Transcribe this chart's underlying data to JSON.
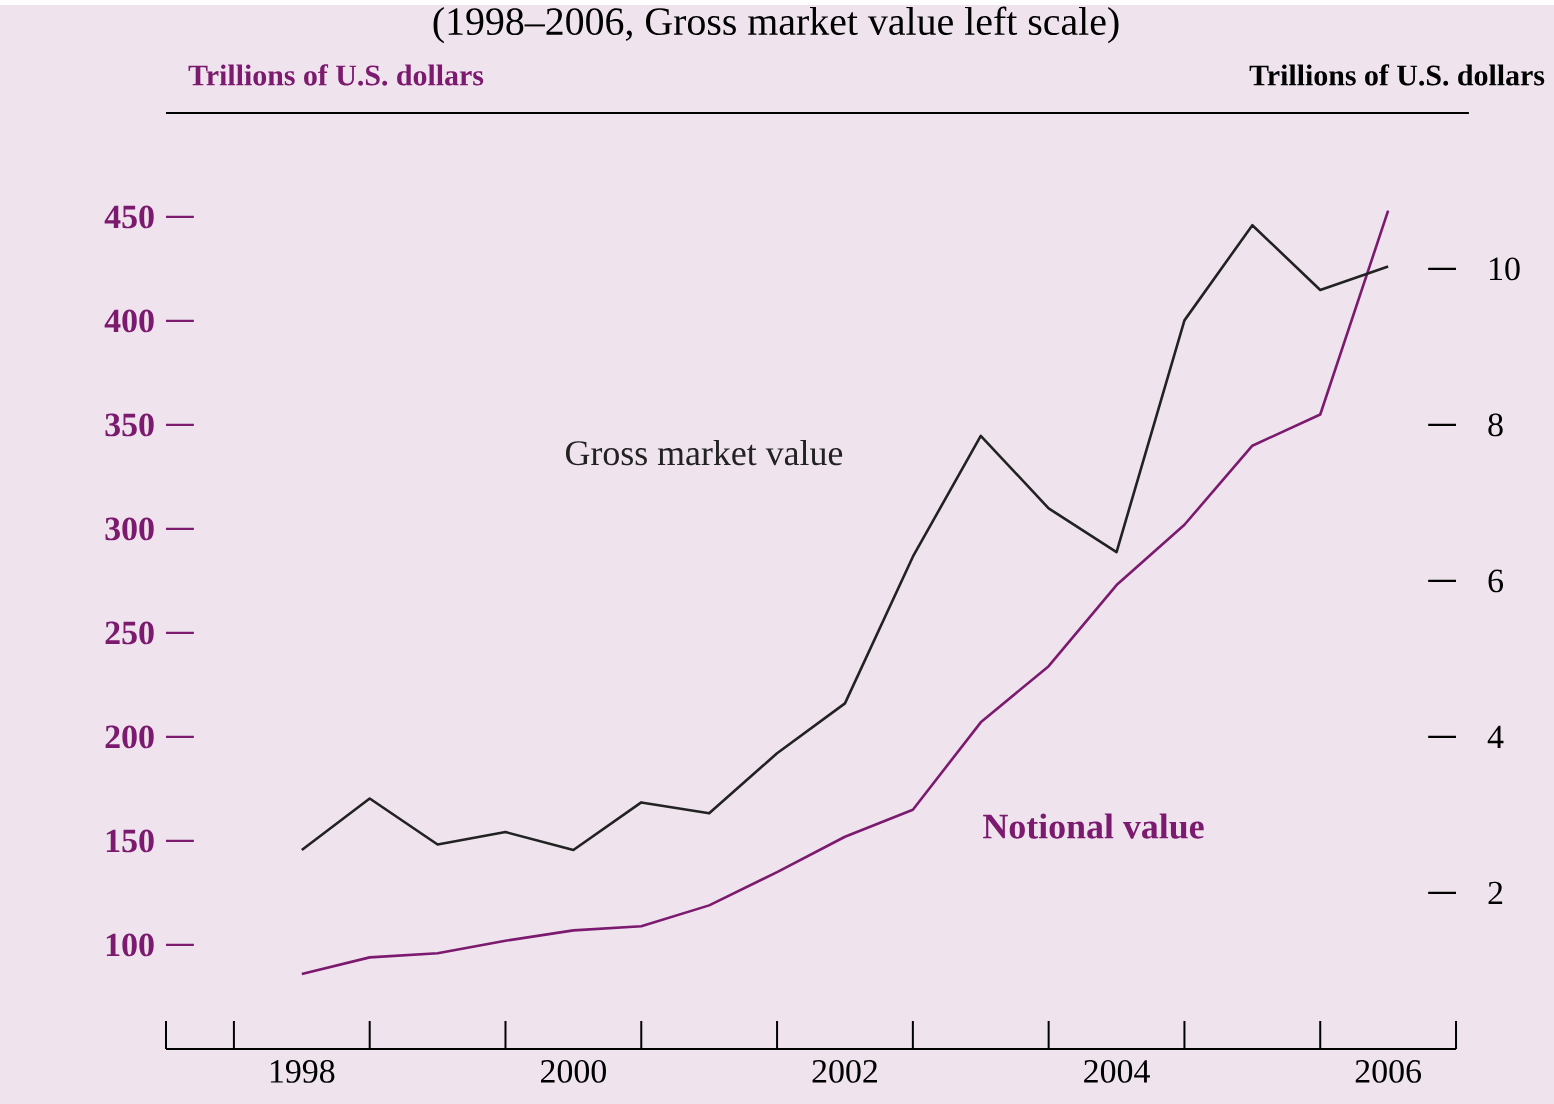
{
  "chart_data": {
    "type": "line",
    "title": "(1998–2006, Gross market value left scale)",
    "ylabel": "Trillions of U.S. dollars",
    "y2label": "Trillions of U.S. dollars",
    "x": [
      1998.5,
      1999,
      1999.5,
      2000,
      2000.5,
      2001,
      2001.5,
      2002,
      2002.5,
      2003,
      2003.5,
      2004,
      2004.5,
      2005,
      2005.5,
      2006,
      2006.5
    ],
    "series": [
      {
        "name": "Gross market value",
        "color": "#222222",
        "axis": "y2",
        "values": [
          2.55,
          3.21,
          2.62,
          2.78,
          2.55,
          3.16,
          3.02,
          3.79,
          4.43,
          6.31,
          7.86,
          6.93,
          6.37,
          9.34,
          10.56,
          9.73,
          10.03
        ]
      },
      {
        "name": "Notional value",
        "color": "#7b1a6e",
        "values": [
          86,
          94,
          96,
          102,
          107,
          109,
          119,
          135,
          152,
          165,
          207,
          234,
          273,
          302,
          340,
          355,
          453
        ]
      }
    ],
    "xlim": [
      1997.5,
      2007
    ],
    "xticks": [
      {
        "value": 1997.5,
        "label": null
      },
      {
        "value": 1998,
        "label": null
      },
      {
        "value": 1998.5,
        "label": "1998"
      },
      {
        "value": 1999,
        "label": null
      },
      {
        "value": 2000,
        "label": null
      },
      {
        "value": 2000.5,
        "label": "2000"
      },
      {
        "value": 2001,
        "label": null
      },
      {
        "value": 2002,
        "label": null
      },
      {
        "value": 2002.5,
        "label": "2002"
      },
      {
        "value": 2003,
        "label": null
      },
      {
        "value": 2004,
        "label": null
      },
      {
        "value": 2004.5,
        "label": "2004"
      },
      {
        "value": 2005,
        "label": null
      },
      {
        "value": 2006,
        "label": null
      },
      {
        "value": 2006.5,
        "label": "2006"
      },
      {
        "value": 2007,
        "label": null
      }
    ],
    "ylim": [
      50,
      500
    ],
    "yticks": [
      100,
      150,
      200,
      250,
      300,
      350,
      400,
      450
    ],
    "y2lim": [
      0,
      12
    ],
    "y2ticks": [
      2,
      4,
      6,
      8,
      10
    ],
    "marker": "none",
    "line_style": "solid"
  }
}
